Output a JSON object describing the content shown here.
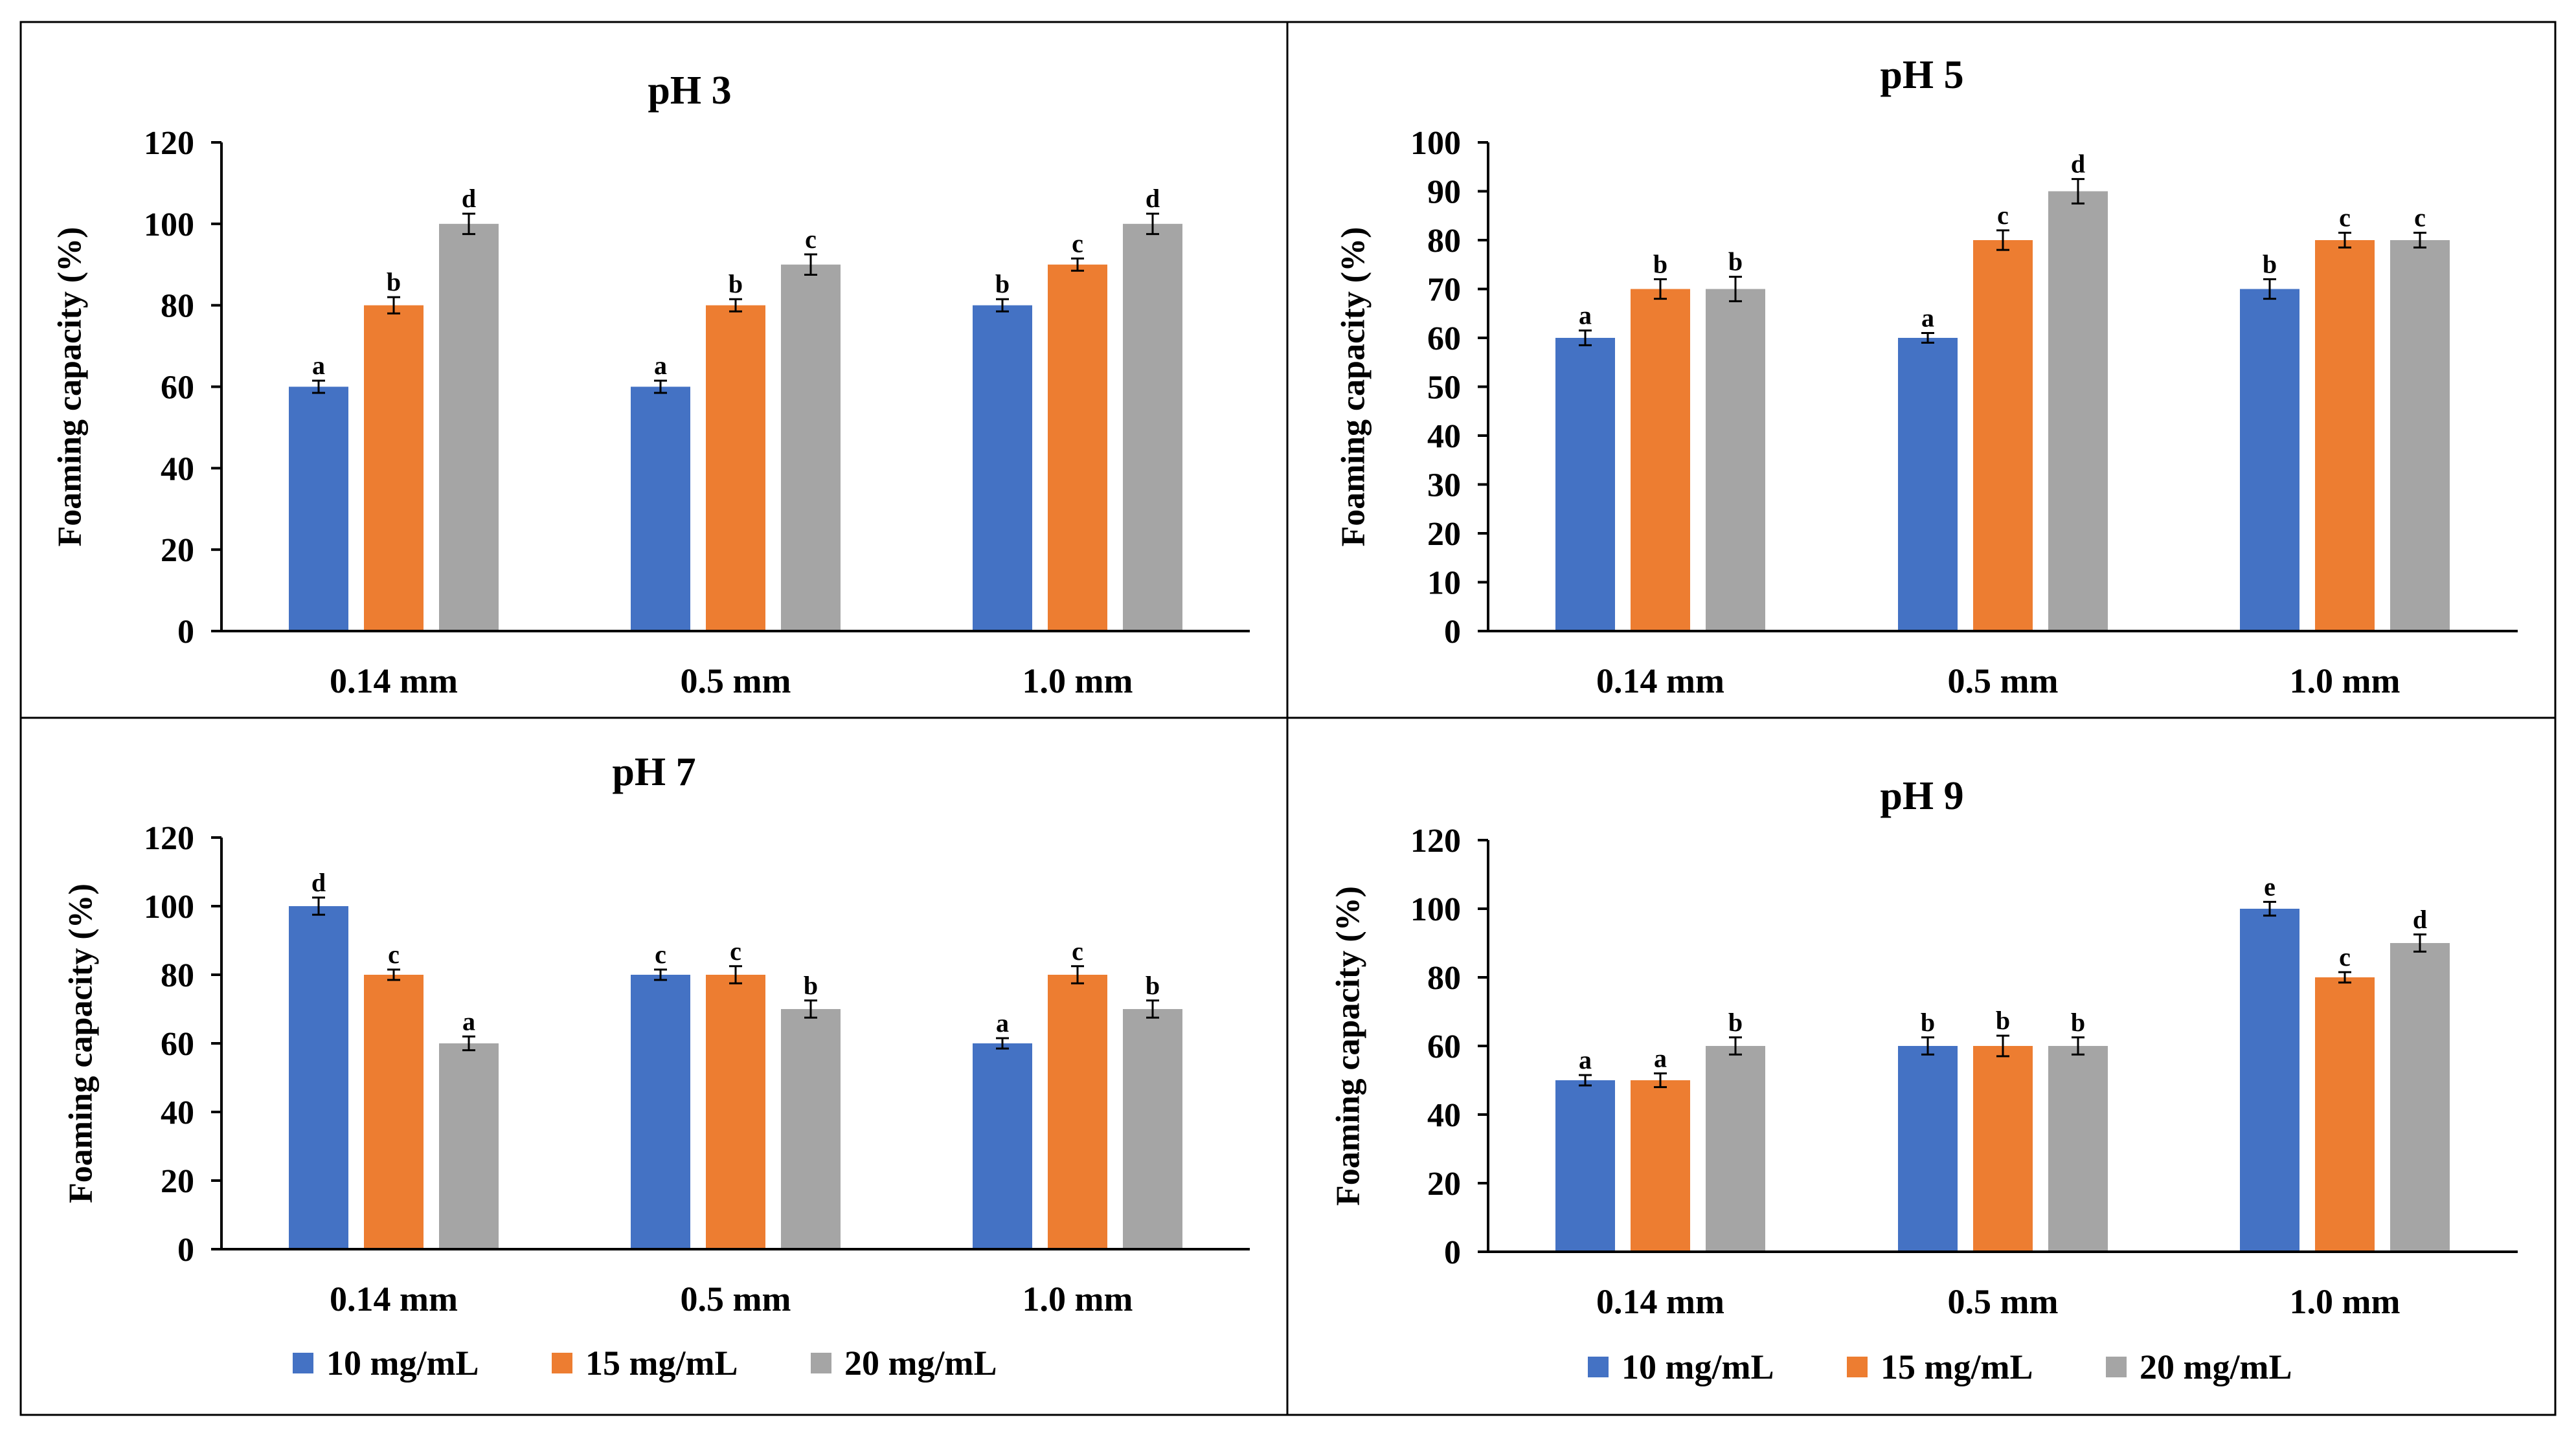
{
  "figure": {
    "legend": [
      {
        "label": "10 mg/mL",
        "color": "#4472C4"
      },
      {
        "label": "15 mg/mL",
        "color": "#ED7D31"
      },
      {
        "label": "20 mg/mL",
        "color": "#A5A5A5"
      }
    ]
  },
  "chart_data": [
    {
      "type": "bar",
      "title": "pH 3",
      "ylabel": "Foaming capacity (%)",
      "xlabel": "",
      "categories": [
        "0.14 mm",
        "0.5 mm",
        "1.0 mm"
      ],
      "ylim": [
        0,
        120
      ],
      "yticks": [
        0,
        20,
        40,
        60,
        80,
        100,
        120
      ],
      "series": [
        {
          "name": "10 mg/mL",
          "values": [
            60,
            60,
            80
          ],
          "errors": [
            1.5,
            1.5,
            1.5
          ],
          "letters": [
            "a",
            "a",
            "b"
          ]
        },
        {
          "name": "15 mg/mL",
          "values": [
            80,
            80,
            90
          ],
          "errors": [
            2,
            1.5,
            1.5
          ],
          "letters": [
            "b",
            "b",
            "c"
          ]
        },
        {
          "name": "20 mg/mL",
          "values": [
            100,
            90,
            100
          ],
          "errors": [
            2.5,
            2.5,
            2.5
          ],
          "letters": [
            "d",
            "c",
            "d"
          ]
        }
      ]
    },
    {
      "type": "bar",
      "title": "pH 5",
      "ylabel": "Foaming capacity (%)",
      "xlabel": "",
      "categories": [
        "0.14 mm",
        "0.5 mm",
        "1.0 mm"
      ],
      "ylim": [
        0,
        100
      ],
      "yticks": [
        0,
        10,
        20,
        30,
        40,
        50,
        60,
        70,
        80,
        90,
        100
      ],
      "series": [
        {
          "name": "10 mg/mL",
          "values": [
            60,
            60,
            70
          ],
          "errors": [
            1.5,
            1,
            2
          ],
          "letters": [
            "a",
            "a",
            "b"
          ]
        },
        {
          "name": "15 mg/mL",
          "values": [
            70,
            80,
            80
          ],
          "errors": [
            2,
            2,
            1.5
          ],
          "letters": [
            "b",
            "c",
            "c"
          ]
        },
        {
          "name": "20 mg/mL",
          "values": [
            70,
            90,
            80
          ],
          "errors": [
            2.5,
            2.5,
            1.5
          ],
          "letters": [
            "b",
            "d",
            "c"
          ]
        }
      ]
    },
    {
      "type": "bar",
      "title": "pH 7",
      "ylabel": "Foaming capacity (%)",
      "xlabel": "",
      "categories": [
        "0.14 mm",
        "0.5 mm",
        "1.0 mm"
      ],
      "ylim": [
        0,
        120
      ],
      "yticks": [
        0,
        20,
        40,
        60,
        80,
        100,
        120
      ],
      "series": [
        {
          "name": "10 mg/mL",
          "values": [
            100,
            80,
            60
          ],
          "errors": [
            2.5,
            1.5,
            1.5
          ],
          "letters": [
            "d",
            "c",
            "a"
          ]
        },
        {
          "name": "15 mg/mL",
          "values": [
            80,
            80,
            80
          ],
          "errors": [
            1.5,
            2.5,
            2.5
          ],
          "letters": [
            "c",
            "c",
            "c"
          ]
        },
        {
          "name": "20 mg/mL",
          "values": [
            60,
            70,
            70
          ],
          "errors": [
            2,
            2.5,
            2.5
          ],
          "letters": [
            "a",
            "b",
            "b"
          ]
        }
      ]
    },
    {
      "type": "bar",
      "title": "pH 9",
      "ylabel": "Foaming capacity (%)",
      "xlabel": "",
      "categories": [
        "0.14 mm",
        "0.5 mm",
        "1.0 mm"
      ],
      "ylim": [
        0,
        120
      ],
      "yticks": [
        0,
        20,
        40,
        60,
        80,
        100,
        120
      ],
      "series": [
        {
          "name": "10 mg/mL",
          "values": [
            50,
            60,
            100
          ],
          "errors": [
            1.5,
            2.5,
            2
          ],
          "letters": [
            "a",
            "b",
            "e"
          ]
        },
        {
          "name": "15 mg/mL",
          "values": [
            50,
            60,
            80
          ],
          "errors": [
            2,
            3,
            1.5
          ],
          "letters": [
            "a",
            "b",
            "c"
          ]
        },
        {
          "name": "20 mg/mL",
          "values": [
            60,
            60,
            90
          ],
          "errors": [
            2.5,
            2.5,
            2.5
          ],
          "letters": [
            "b",
            "b",
            "d"
          ]
        }
      ]
    }
  ]
}
